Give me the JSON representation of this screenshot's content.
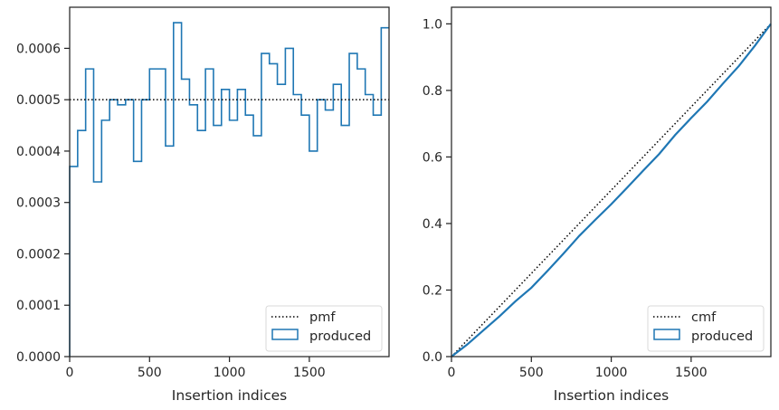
{
  "chart_data": [
    {
      "type": "histogram-step",
      "xlabel": "Insertion indices",
      "ylabel": "",
      "xlim": [
        0,
        1999
      ],
      "ylim": [
        0,
        0.00068
      ],
      "xticks": [
        0,
        500,
        1000,
        1500
      ],
      "xtick_labels": [
        "0",
        "500",
        "1000",
        "1500"
      ],
      "yticks": [
        0,
        0.0001,
        0.0002,
        0.0003,
        0.0004,
        0.0005,
        0.0006
      ],
      "ytick_labels": [
        "0.0000",
        "0.0001",
        "0.0002",
        "0.0003",
        "0.0004",
        "0.0005",
        "0.0006"
      ],
      "bin_width": 50,
      "bin_start": 0,
      "series": [
        {
          "name": "produced",
          "color": "#1f77b4",
          "style": "step",
          "values": [
            0.00037,
            0.00044,
            0.00056,
            0.00034,
            0.00046,
            0.0005,
            0.00049,
            0.0005,
            0.00038,
            0.0005,
            0.00056,
            0.00056,
            0.00041,
            0.00065,
            0.00054,
            0.00049,
            0.00044,
            0.00056,
            0.00045,
            0.00052,
            0.00046,
            0.00052,
            0.00047,
            0.00043,
            0.00059,
            0.00057,
            0.00053,
            0.0006,
            0.00051,
            0.00047,
            0.0004,
            0.0005,
            0.00048,
            0.00053,
            0.00045,
            0.00059,
            0.00056,
            0.00051,
            0.00047,
            0.00064
          ]
        },
        {
          "name": "pmf",
          "color": "#000000",
          "style": "dotted",
          "values": [
            0.0005,
            0.0005
          ]
        }
      ],
      "legend": {
        "placement": "lower-right",
        "entries": [
          "pmf",
          "produced"
        ]
      }
    },
    {
      "type": "line",
      "xlabel": "Insertion indices",
      "ylabel": "",
      "xlim": [
        0,
        1999
      ],
      "ylim": [
        0,
        1.05
      ],
      "xticks": [
        0,
        500,
        1000,
        1500
      ],
      "xtick_labels": [
        "0",
        "500",
        "1000",
        "1500"
      ],
      "yticks": [
        0,
        0.2,
        0.4,
        0.6,
        0.8,
        1.0
      ],
      "ytick_labels": [
        "0.0",
        "0.2",
        "0.4",
        "0.6",
        "0.8",
        "1.0"
      ],
      "series": [
        {
          "name": "cmf",
          "color": "#000000",
          "style": "dotted",
          "x": [
            0,
            1999
          ],
          "y": [
            0,
            1.0
          ]
        },
        {
          "name": "produced",
          "color": "#1f77b4",
          "style": "solid",
          "x": [
            0,
            100,
            200,
            300,
            400,
            500,
            600,
            700,
            800,
            900,
            1000,
            1100,
            1200,
            1300,
            1400,
            1500,
            1600,
            1700,
            1800,
            1900,
            1999
          ],
          "y": [
            0,
            0.037,
            0.079,
            0.121,
            0.166,
            0.207,
            0.257,
            0.309,
            0.363,
            0.411,
            0.458,
            0.508,
            0.559,
            0.609,
            0.666,
            0.717,
            0.766,
            0.821,
            0.874,
            0.935,
            1.0
          ]
        }
      ],
      "legend": {
        "placement": "lower-right",
        "entries": [
          "cmf",
          "produced"
        ]
      }
    }
  ]
}
